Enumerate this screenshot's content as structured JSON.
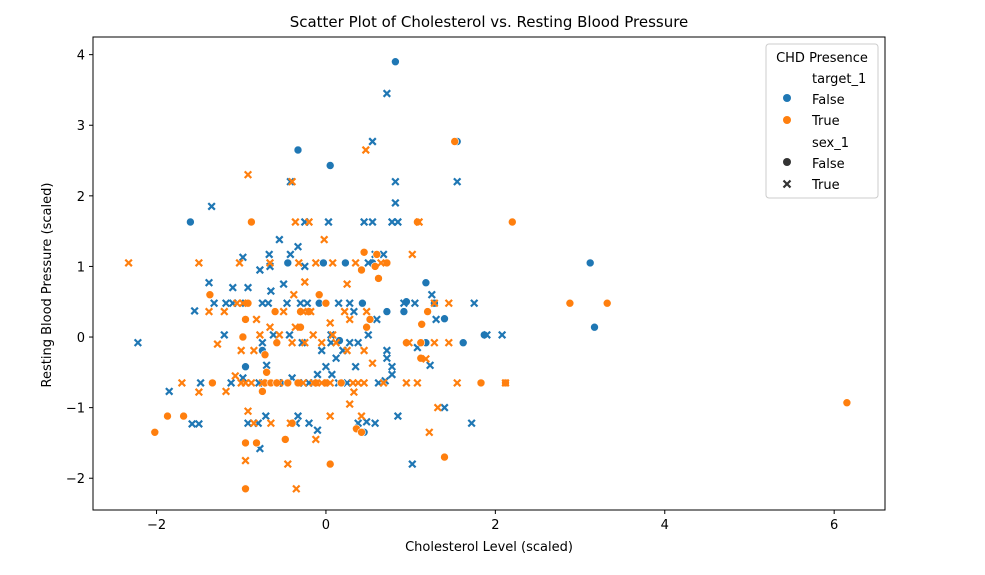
{
  "chart_data": {
    "type": "scatter",
    "title": "Scatter Plot of Cholesterol vs. Resting Blood Pressure",
    "xlabel": "Cholesterol Level (scaled)",
    "ylabel": "Resting Blood Pressure (scaled)",
    "xlim": [
      -2.75,
      6.6
    ],
    "ylim": [
      -2.45,
      4.25
    ],
    "xticks": [
      -2,
      0,
      2,
      4,
      6
    ],
    "yticks": [
      -2,
      -1,
      0,
      1,
      2,
      3,
      4
    ],
    "xtick_labels": [
      "−2",
      "0",
      "2",
      "4",
      "6"
    ],
    "ytick_labels": [
      "−2",
      "−1",
      "0",
      "1",
      "2",
      "3",
      "4"
    ],
    "grid": false,
    "legend": {
      "placement": "upper right",
      "title": "CHD Presence",
      "hue_title": "target_1",
      "hue_entries": [
        "False",
        "True"
      ],
      "style_title": "sex_1",
      "style_entries": [
        "False",
        "True"
      ]
    },
    "colors": {
      "target_False": "#1f77b4",
      "target_True": "#ff7f0e",
      "style_marker": "#333333"
    },
    "series": [
      {
        "name": "target_1=False, sex_1=False",
        "hue": "False",
        "style": "False",
        "points": [
          [
            0.82,
            3.9
          ],
          [
            -0.33,
            2.65
          ],
          [
            0.05,
            2.43
          ],
          [
            1.55,
            2.77
          ],
          [
            -1.6,
            1.63
          ],
          [
            3.12,
            1.05
          ],
          [
            3.17,
            0.14
          ],
          [
            1.62,
            -0.08
          ],
          [
            1.87,
            0.03
          ],
          [
            1.4,
            0.26
          ],
          [
            1.18,
            0.77
          ],
          [
            -0.45,
            1.05
          ],
          [
            0.23,
            1.05
          ],
          [
            -0.03,
            1.05
          ],
          [
            0.55,
            1.05
          ],
          [
            0.43,
            0.48
          ],
          [
            -0.08,
            0.48
          ],
          [
            1.28,
            0.48
          ],
          [
            0.72,
            0.36
          ],
          [
            0.92,
            0.36
          ],
          [
            -0.95,
            -0.42
          ],
          [
            -0.75,
            -0.19
          ],
          [
            0.45,
            -1.35
          ],
          [
            0.16,
            -0.05
          ],
          [
            0.95,
            0.5
          ],
          [
            1.18,
            -0.08
          ]
        ]
      },
      {
        "name": "target_1=False, sex_1=True",
        "hue": "False",
        "style": "True",
        "points": [
          [
            0.72,
            3.45
          ],
          [
            0.55,
            2.77
          ],
          [
            0.82,
            2.2
          ],
          [
            1.55,
            2.2
          ],
          [
            -0.42,
            2.2
          ],
          [
            -1.35,
            1.85
          ],
          [
            0.82,
            1.9
          ],
          [
            0.45,
            1.63
          ],
          [
            0.55,
            1.63
          ],
          [
            0.78,
            1.63
          ],
          [
            0.85,
            1.63
          ],
          [
            0.03,
            1.63
          ],
          [
            -0.25,
            1.63
          ],
          [
            -0.55,
            1.38
          ],
          [
            -0.33,
            1.28
          ],
          [
            -0.98,
            1.13
          ],
          [
            -0.67,
            1.17
          ],
          [
            -0.42,
            1.17
          ],
          [
            0.58,
            1.17
          ],
          [
            0.68,
            1.17
          ],
          [
            0.5,
            1.05
          ],
          [
            -0.66,
            1.0
          ],
          [
            -0.25,
            1.0
          ],
          [
            -0.78,
            0.95
          ],
          [
            -0.5,
            0.75
          ],
          [
            -1.38,
            0.77
          ],
          [
            -1.1,
            0.7
          ],
          [
            -0.92,
            0.7
          ],
          [
            -0.65,
            0.65
          ],
          [
            -1.55,
            0.37
          ],
          [
            -1.32,
            0.48
          ],
          [
            -1.18,
            0.48
          ],
          [
            -1.1,
            0.48
          ],
          [
            -0.95,
            0.48
          ],
          [
            -0.75,
            0.48
          ],
          [
            -0.68,
            0.48
          ],
          [
            -0.46,
            0.48
          ],
          [
            -0.3,
            0.48
          ],
          [
            -0.22,
            0.48
          ],
          [
            0.15,
            0.48
          ],
          [
            0.28,
            0.48
          ],
          [
            0.92,
            0.48
          ],
          [
            1.05,
            0.48
          ],
          [
            1.25,
            0.6
          ],
          [
            1.75,
            0.48
          ],
          [
            -2.22,
            -0.08
          ],
          [
            -1.2,
            0.03
          ],
          [
            -0.75,
            -0.08
          ],
          [
            -0.62,
            0.03
          ],
          [
            -0.43,
            0.03
          ],
          [
            -0.28,
            -0.08
          ],
          [
            0.06,
            0.03
          ],
          [
            0.33,
            0.36
          ],
          [
            0.6,
            0.25
          ],
          [
            0.5,
            0.03
          ],
          [
            0.38,
            -0.08
          ],
          [
            0.72,
            -0.3
          ],
          [
            0.72,
            -0.19
          ],
          [
            0.28,
            -0.08
          ],
          [
            0.2,
            -0.19
          ],
          [
            0.12,
            -0.3
          ],
          [
            0.06,
            -0.08
          ],
          [
            -0.05,
            -0.19
          ],
          [
            0.35,
            -0.42
          ],
          [
            0.78,
            -0.42
          ],
          [
            0.78,
            -0.53
          ],
          [
            0.7,
            -0.62
          ],
          [
            0.62,
            -0.65
          ],
          [
            0.25,
            -0.65
          ],
          [
            0.0,
            -0.42
          ],
          [
            1.08,
            -0.15
          ],
          [
            1.23,
            -0.4
          ],
          [
            1.3,
            0.25
          ],
          [
            1.9,
            0.03
          ],
          [
            2.08,
            0.03
          ],
          [
            -1.85,
            -0.77
          ],
          [
            -1.48,
            -0.65
          ],
          [
            -1.12,
            -0.65
          ],
          [
            -0.98,
            -0.58
          ],
          [
            -0.79,
            -0.65
          ],
          [
            -0.7,
            -0.4
          ],
          [
            -0.57,
            -0.65
          ],
          [
            -0.5,
            -0.65
          ],
          [
            -0.4,
            -0.58
          ],
          [
            -0.32,
            -0.65
          ],
          [
            -0.2,
            -0.65
          ],
          [
            -0.1,
            -0.53
          ],
          [
            0.07,
            -0.53
          ],
          [
            0.15,
            -0.65
          ],
          [
            -1.58,
            -1.23
          ],
          [
            -1.5,
            -1.23
          ],
          [
            -0.92,
            -1.22
          ],
          [
            -0.8,
            -1.22
          ],
          [
            -0.71,
            -1.12
          ],
          [
            -0.33,
            -1.12
          ],
          [
            -0.35,
            -1.22
          ],
          [
            -0.2,
            -1.22
          ],
          [
            -0.1,
            -1.32
          ],
          [
            0.38,
            -1.22
          ],
          [
            0.48,
            -1.2
          ],
          [
            0.58,
            -1.22
          ],
          [
            0.85,
            -1.12
          ],
          [
            1.4,
            -1.0
          ],
          [
            1.72,
            -1.22
          ],
          [
            1.02,
            -1.8
          ],
          [
            -0.78,
            -1.58
          ]
        ]
      },
      {
        "name": "target_1=True, sex_1=False",
        "hue": "True",
        "style": "False",
        "points": [
          [
            1.52,
            2.77
          ],
          [
            2.2,
            1.63
          ],
          [
            1.08,
            1.63
          ],
          [
            -0.88,
            1.63
          ],
          [
            0.45,
            1.2
          ],
          [
            0.6,
            1.17
          ],
          [
            0.72,
            1.05
          ],
          [
            0.42,
            0.95
          ],
          [
            0.62,
            0.83
          ],
          [
            -0.08,
            0.6
          ],
          [
            0.0,
            0.48
          ],
          [
            -1.37,
            0.6
          ],
          [
            -0.92,
            0.48
          ],
          [
            -0.95,
            0.25
          ],
          [
            2.88,
            0.48
          ],
          [
            3.32,
            0.48
          ],
          [
            1.2,
            0.36
          ],
          [
            0.52,
            0.25
          ],
          [
            0.48,
            0.14
          ],
          [
            1.13,
            0.18
          ],
          [
            1.12,
            -0.08
          ],
          [
            1.12,
            -0.3
          ],
          [
            0.95,
            -0.08
          ],
          [
            -0.2,
            0.36
          ],
          [
            -0.3,
            0.36
          ],
          [
            -0.6,
            0.36
          ],
          [
            -0.3,
            0.14
          ],
          [
            -0.98,
            0.0
          ],
          [
            -0.72,
            -0.25
          ],
          [
            -0.58,
            -0.08
          ],
          [
            -0.7,
            -0.5
          ],
          [
            -0.72,
            -0.65
          ],
          [
            -0.65,
            -0.65
          ],
          [
            -0.58,
            -0.65
          ],
          [
            -0.45,
            -0.65
          ],
          [
            -0.33,
            -0.65
          ],
          [
            -0.12,
            -0.65
          ],
          [
            0.0,
            -0.65
          ],
          [
            0.18,
            -0.65
          ],
          [
            -0.75,
            -0.77
          ],
          [
            -1.34,
            -0.65
          ],
          [
            1.83,
            -0.65
          ],
          [
            2.12,
            -0.65
          ],
          [
            6.15,
            -0.93
          ],
          [
            -1.68,
            -1.12
          ],
          [
            -1.87,
            -1.12
          ],
          [
            -2.02,
            -1.35
          ],
          [
            -0.95,
            -1.5
          ],
          [
            -0.82,
            -1.5
          ],
          [
            -0.48,
            -1.45
          ],
          [
            -0.95,
            -2.15
          ],
          [
            0.05,
            -1.8
          ],
          [
            1.4,
            -1.7
          ],
          [
            -0.4,
            -1.22
          ],
          [
            0.36,
            -1.3
          ],
          [
            0.42,
            -1.35
          ],
          [
            0.58,
            1.0
          ]
        ]
      },
      {
        "name": "target_1=True, sex_1=True",
        "hue": "True",
        "style": "True",
        "points": [
          [
            0.47,
            2.65
          ],
          [
            -0.4,
            2.2
          ],
          [
            -0.92,
            2.3
          ],
          [
            -0.2,
            1.63
          ],
          [
            -0.36,
            1.63
          ],
          [
            1.1,
            1.63
          ],
          [
            -0.02,
            1.38
          ],
          [
            1.02,
            1.17
          ],
          [
            -0.12,
            1.05
          ],
          [
            -2.33,
            1.05
          ],
          [
            -1.5,
            1.05
          ],
          [
            -1.02,
            1.05
          ],
          [
            -0.66,
            1.05
          ],
          [
            -0.32,
            1.05
          ],
          [
            0.08,
            1.05
          ],
          [
            0.65,
            1.05
          ],
          [
            0.35,
            1.05
          ],
          [
            -0.25,
            0.78
          ],
          [
            0.25,
            0.75
          ],
          [
            -0.38,
            0.6
          ],
          [
            -1.05,
            0.48
          ],
          [
            -0.98,
            0.48
          ],
          [
            -0.5,
            0.36
          ],
          [
            -0.27,
            0.36
          ],
          [
            -0.18,
            0.36
          ],
          [
            0.05,
            0.2
          ],
          [
            0.22,
            0.36
          ],
          [
            0.48,
            0.36
          ],
          [
            1.28,
            0.48
          ],
          [
            1.45,
            0.48
          ],
          [
            -1.38,
            0.36
          ],
          [
            -1.2,
            0.36
          ],
          [
            -0.82,
            0.25
          ],
          [
            -0.66,
            0.14
          ],
          [
            -0.78,
            0.03
          ],
          [
            -0.55,
            0.03
          ],
          [
            -0.36,
            0.14
          ],
          [
            -0.15,
            0.03
          ],
          [
            0.08,
            0.03
          ],
          [
            0.28,
            0.25
          ],
          [
            -1.28,
            -0.1
          ],
          [
            -1.0,
            -0.19
          ],
          [
            -0.85,
            -0.19
          ],
          [
            -0.4,
            -0.08
          ],
          [
            -0.25,
            -0.08
          ],
          [
            -0.05,
            -0.08
          ],
          [
            0.12,
            -0.08
          ],
          [
            0.25,
            -0.19
          ],
          [
            0.45,
            -0.19
          ],
          [
            0.98,
            -0.08
          ],
          [
            1.45,
            -0.08
          ],
          [
            1.18,
            -0.31
          ],
          [
            1.28,
            -0.08
          ],
          [
            0.55,
            -0.37
          ],
          [
            0.68,
            -0.65
          ],
          [
            0.38,
            -0.65
          ],
          [
            0.33,
            -0.78
          ],
          [
            -1.7,
            -0.65
          ],
          [
            -1.5,
            -0.78
          ],
          [
            -1.0,
            -0.65
          ],
          [
            -1.18,
            -0.77
          ],
          [
            -1.07,
            -0.55
          ],
          [
            -0.95,
            -0.65
          ],
          [
            -0.88,
            -0.65
          ],
          [
            -0.75,
            -0.65
          ],
          [
            -0.55,
            -0.65
          ],
          [
            -0.27,
            -0.65
          ],
          [
            -0.15,
            -0.65
          ],
          [
            -0.05,
            -0.65
          ],
          [
            0.05,
            -0.65
          ],
          [
            0.32,
            -0.65
          ],
          [
            0.45,
            -0.65
          ],
          [
            0.95,
            -0.65
          ],
          [
            1.08,
            -0.65
          ],
          [
            1.55,
            -0.65
          ],
          [
            2.12,
            -0.65
          ],
          [
            1.32,
            -1.0
          ],
          [
            0.28,
            -0.95
          ],
          [
            0.05,
            -1.12
          ],
          [
            -0.65,
            -1.22
          ],
          [
            -0.85,
            -1.22
          ],
          [
            -0.92,
            -1.05
          ],
          [
            -0.42,
            -1.22
          ],
          [
            -0.12,
            -1.45
          ],
          [
            0.42,
            -1.12
          ],
          [
            1.22,
            -1.35
          ],
          [
            -0.95,
            -1.75
          ],
          [
            -0.45,
            -1.8
          ],
          [
            -0.35,
            -2.15
          ]
        ]
      }
    ]
  }
}
